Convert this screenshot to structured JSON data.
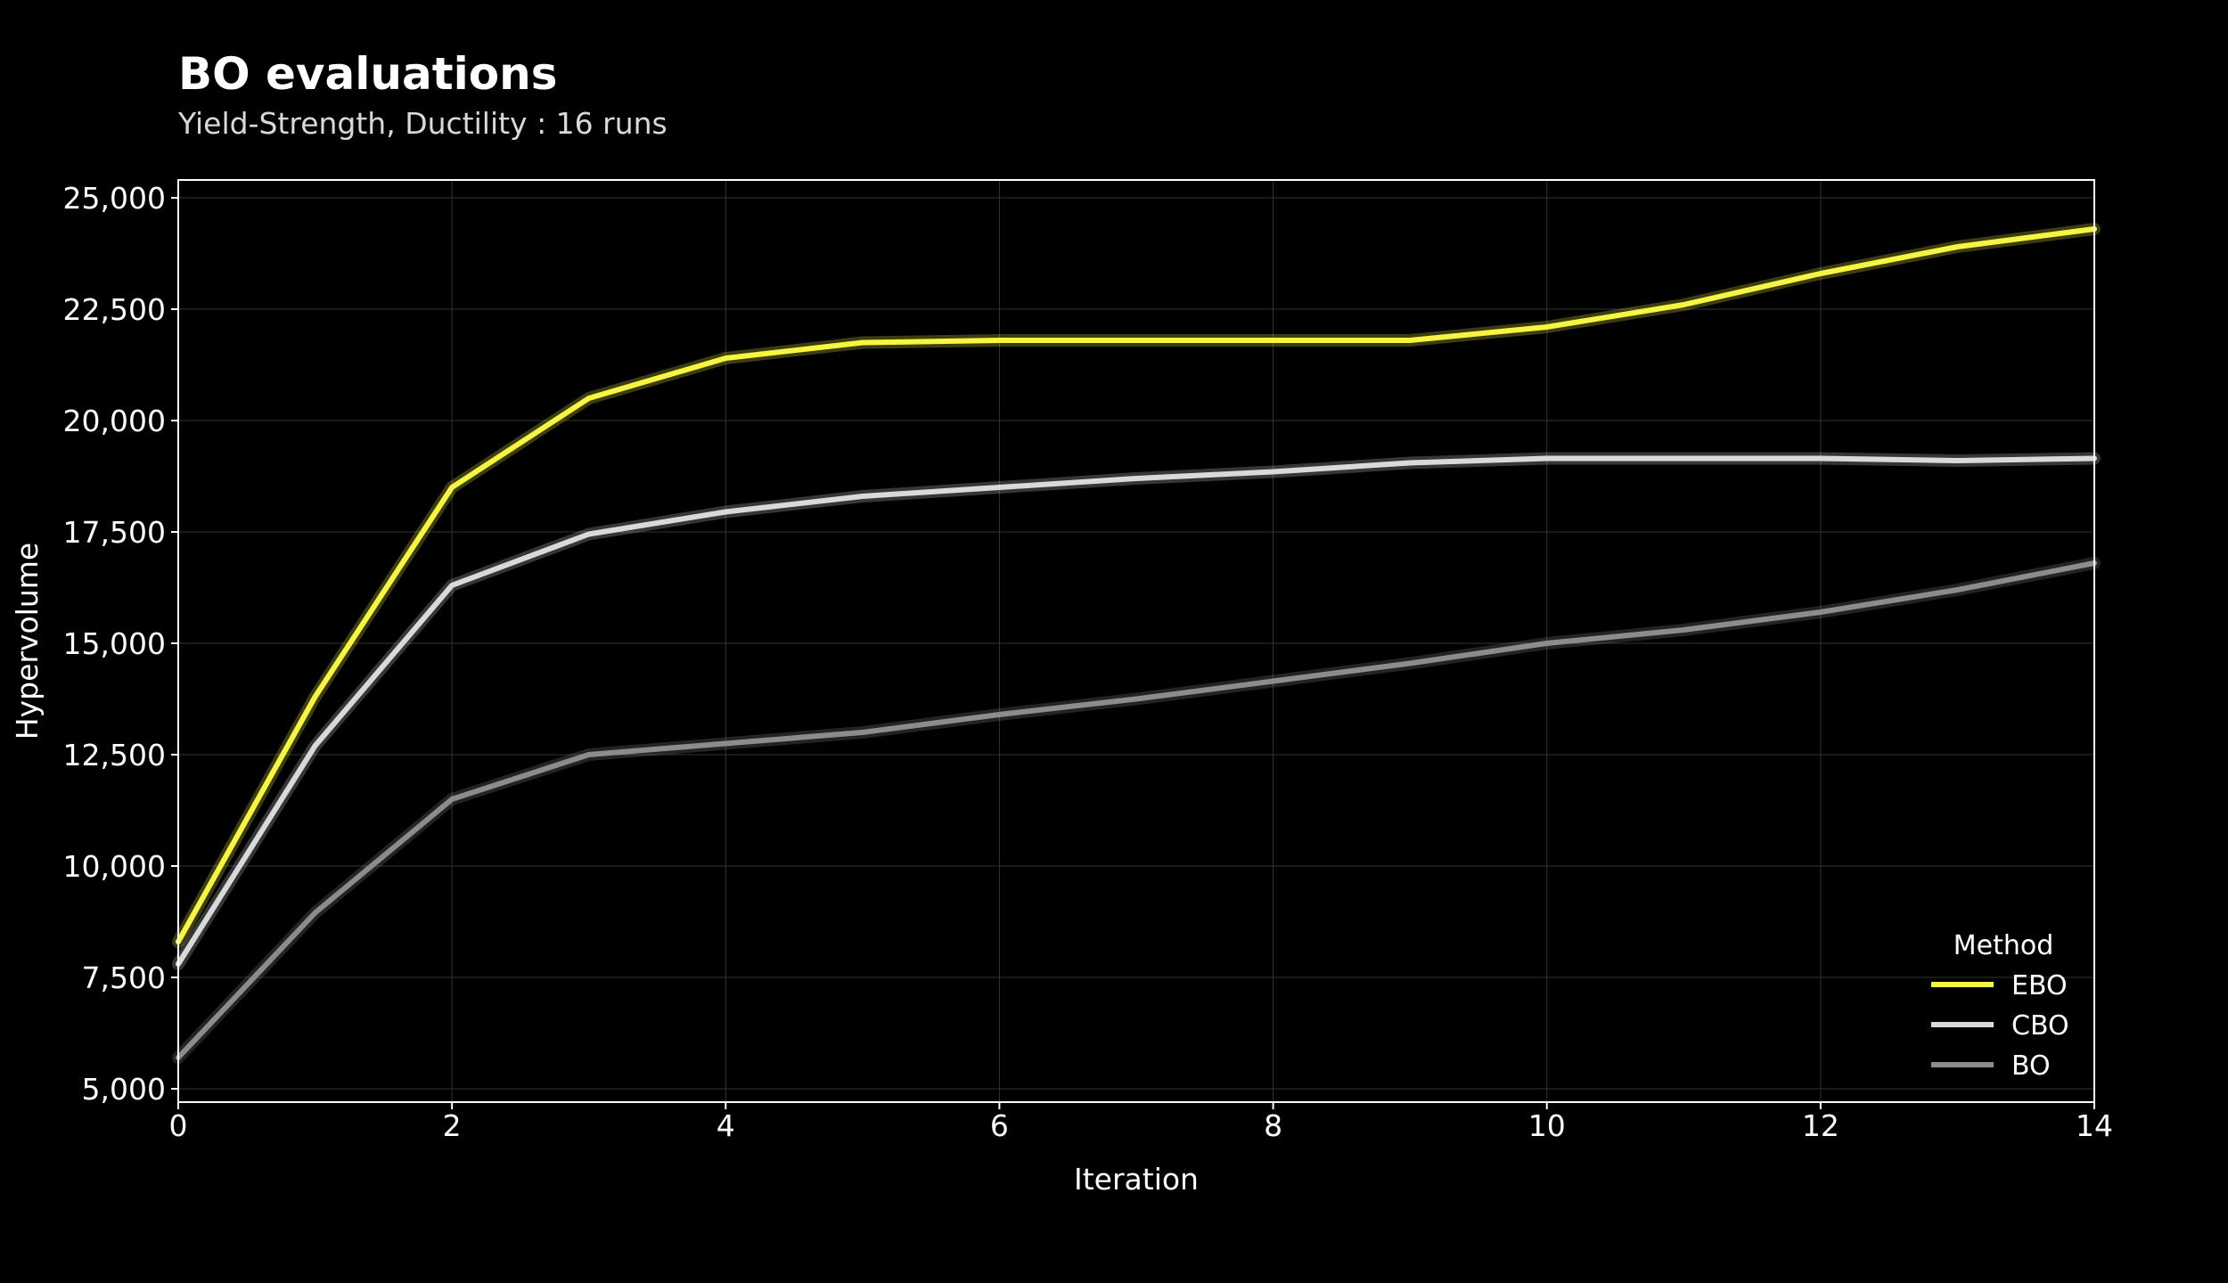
{
  "chart_data": {
    "type": "line",
    "title": "BO evaluations",
    "subtitle": "Yield-Strength, Ductility : 16 runs",
    "xlabel": "Iteration",
    "ylabel": "Hypervolume",
    "xlim": [
      0,
      14
    ],
    "ylim": [
      4700,
      25400
    ],
    "x_ticks": [
      0,
      2,
      4,
      6,
      8,
      10,
      12,
      14
    ],
    "y_ticks": [
      5000,
      7500,
      10000,
      12500,
      15000,
      17500,
      20000,
      22500,
      25000
    ],
    "x_tick_labels": [
      "0",
      "2",
      "4",
      "6",
      "8",
      "10",
      "12",
      "14"
    ],
    "y_tick_labels": [
      "5,000",
      "7,500",
      "10,000",
      "12,500",
      "15,000",
      "17,500",
      "20,000",
      "22,500",
      "25,000"
    ],
    "grid": true,
    "legend": {
      "title": "Method",
      "position": "bottom-right"
    },
    "x": [
      0,
      1,
      2,
      3,
      4,
      5,
      6,
      7,
      8,
      9,
      10,
      11,
      12,
      13,
      14
    ],
    "series": [
      {
        "name": "EBO",
        "color": "#f5f542",
        "values": [
          8300,
          13800,
          18500,
          20500,
          21400,
          21750,
          21800,
          21800,
          21800,
          21800,
          22100,
          22600,
          23300,
          23900,
          24300
        ]
      },
      {
        "name": "CBO",
        "color": "#d9d9d9",
        "values": [
          7800,
          12700,
          16300,
          17450,
          17950,
          18300,
          18500,
          18700,
          18850,
          19050,
          19150,
          19150,
          19150,
          19100,
          19150
        ]
      },
      {
        "name": "BO",
        "color": "#8c8c8c",
        "values": [
          5700,
          8950,
          11500,
          12500,
          12750,
          13000,
          13400,
          13750,
          14150,
          14550,
          15000,
          15300,
          15700,
          16200,
          16800
        ]
      }
    ]
  }
}
